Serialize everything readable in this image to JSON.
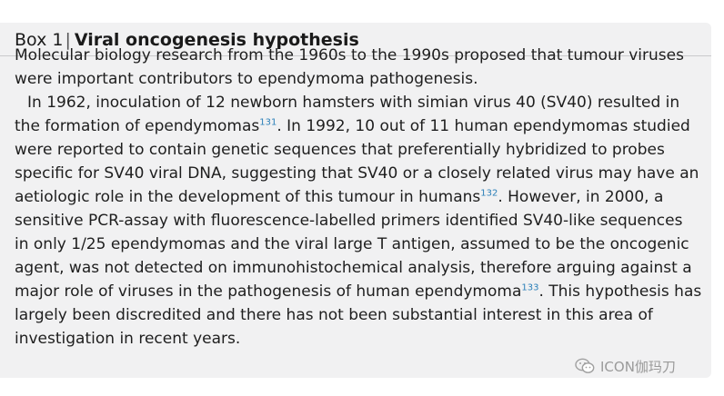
{
  "box": {
    "label": "Box 1",
    "separator": "|",
    "title": "Viral oncogenesis hypothesis"
  },
  "paragraph1": {
    "line1": "Molecular biology research from the 1960s to the 1990s proposed that tumour viruses",
    "line2": "were important contributors to ependymoma pathogenesis."
  },
  "paragraph2": {
    "l1": "In 1962, inoculation of 12 newborn hamsters with simian virus 40 (SV40) resulted in",
    "l2a": "the formation of ependymomas",
    "ref1": "131",
    "l2b": ". In 1992, 10 out of 11 human ependymomas studied",
    "l3": "were reported to contain genetic sequences that preferentially hybridized to probes",
    "l4": "specific for SV40 viral DNA, suggesting that SV40 or a closely related virus may have an",
    "l5a": "aetiologic role in the development of this tumour in humans",
    "ref2": "132",
    "l5b": ". However, in 2000, a",
    "l6": "sensitive PCR-assay with fluorescence-labelled primers identified SV40-like sequences",
    "l7": "in only 1/25 ependymomas and the viral large T antigen, assumed to be the oncogenic",
    "l8": "agent, was not detected on immunohistochemical analysis, therefore arguing against a",
    "l9a": "major role of viruses in the pathogenesis of human ependymoma",
    "ref3": "133",
    "l9b": ". This hypothesis has",
    "l10": "largely been discredited and there has not been substantial interest in this area of",
    "l11": "investigation in recent years."
  },
  "watermark": {
    "text": "ICON伽玛刀",
    "icon": "wechat-icon"
  }
}
